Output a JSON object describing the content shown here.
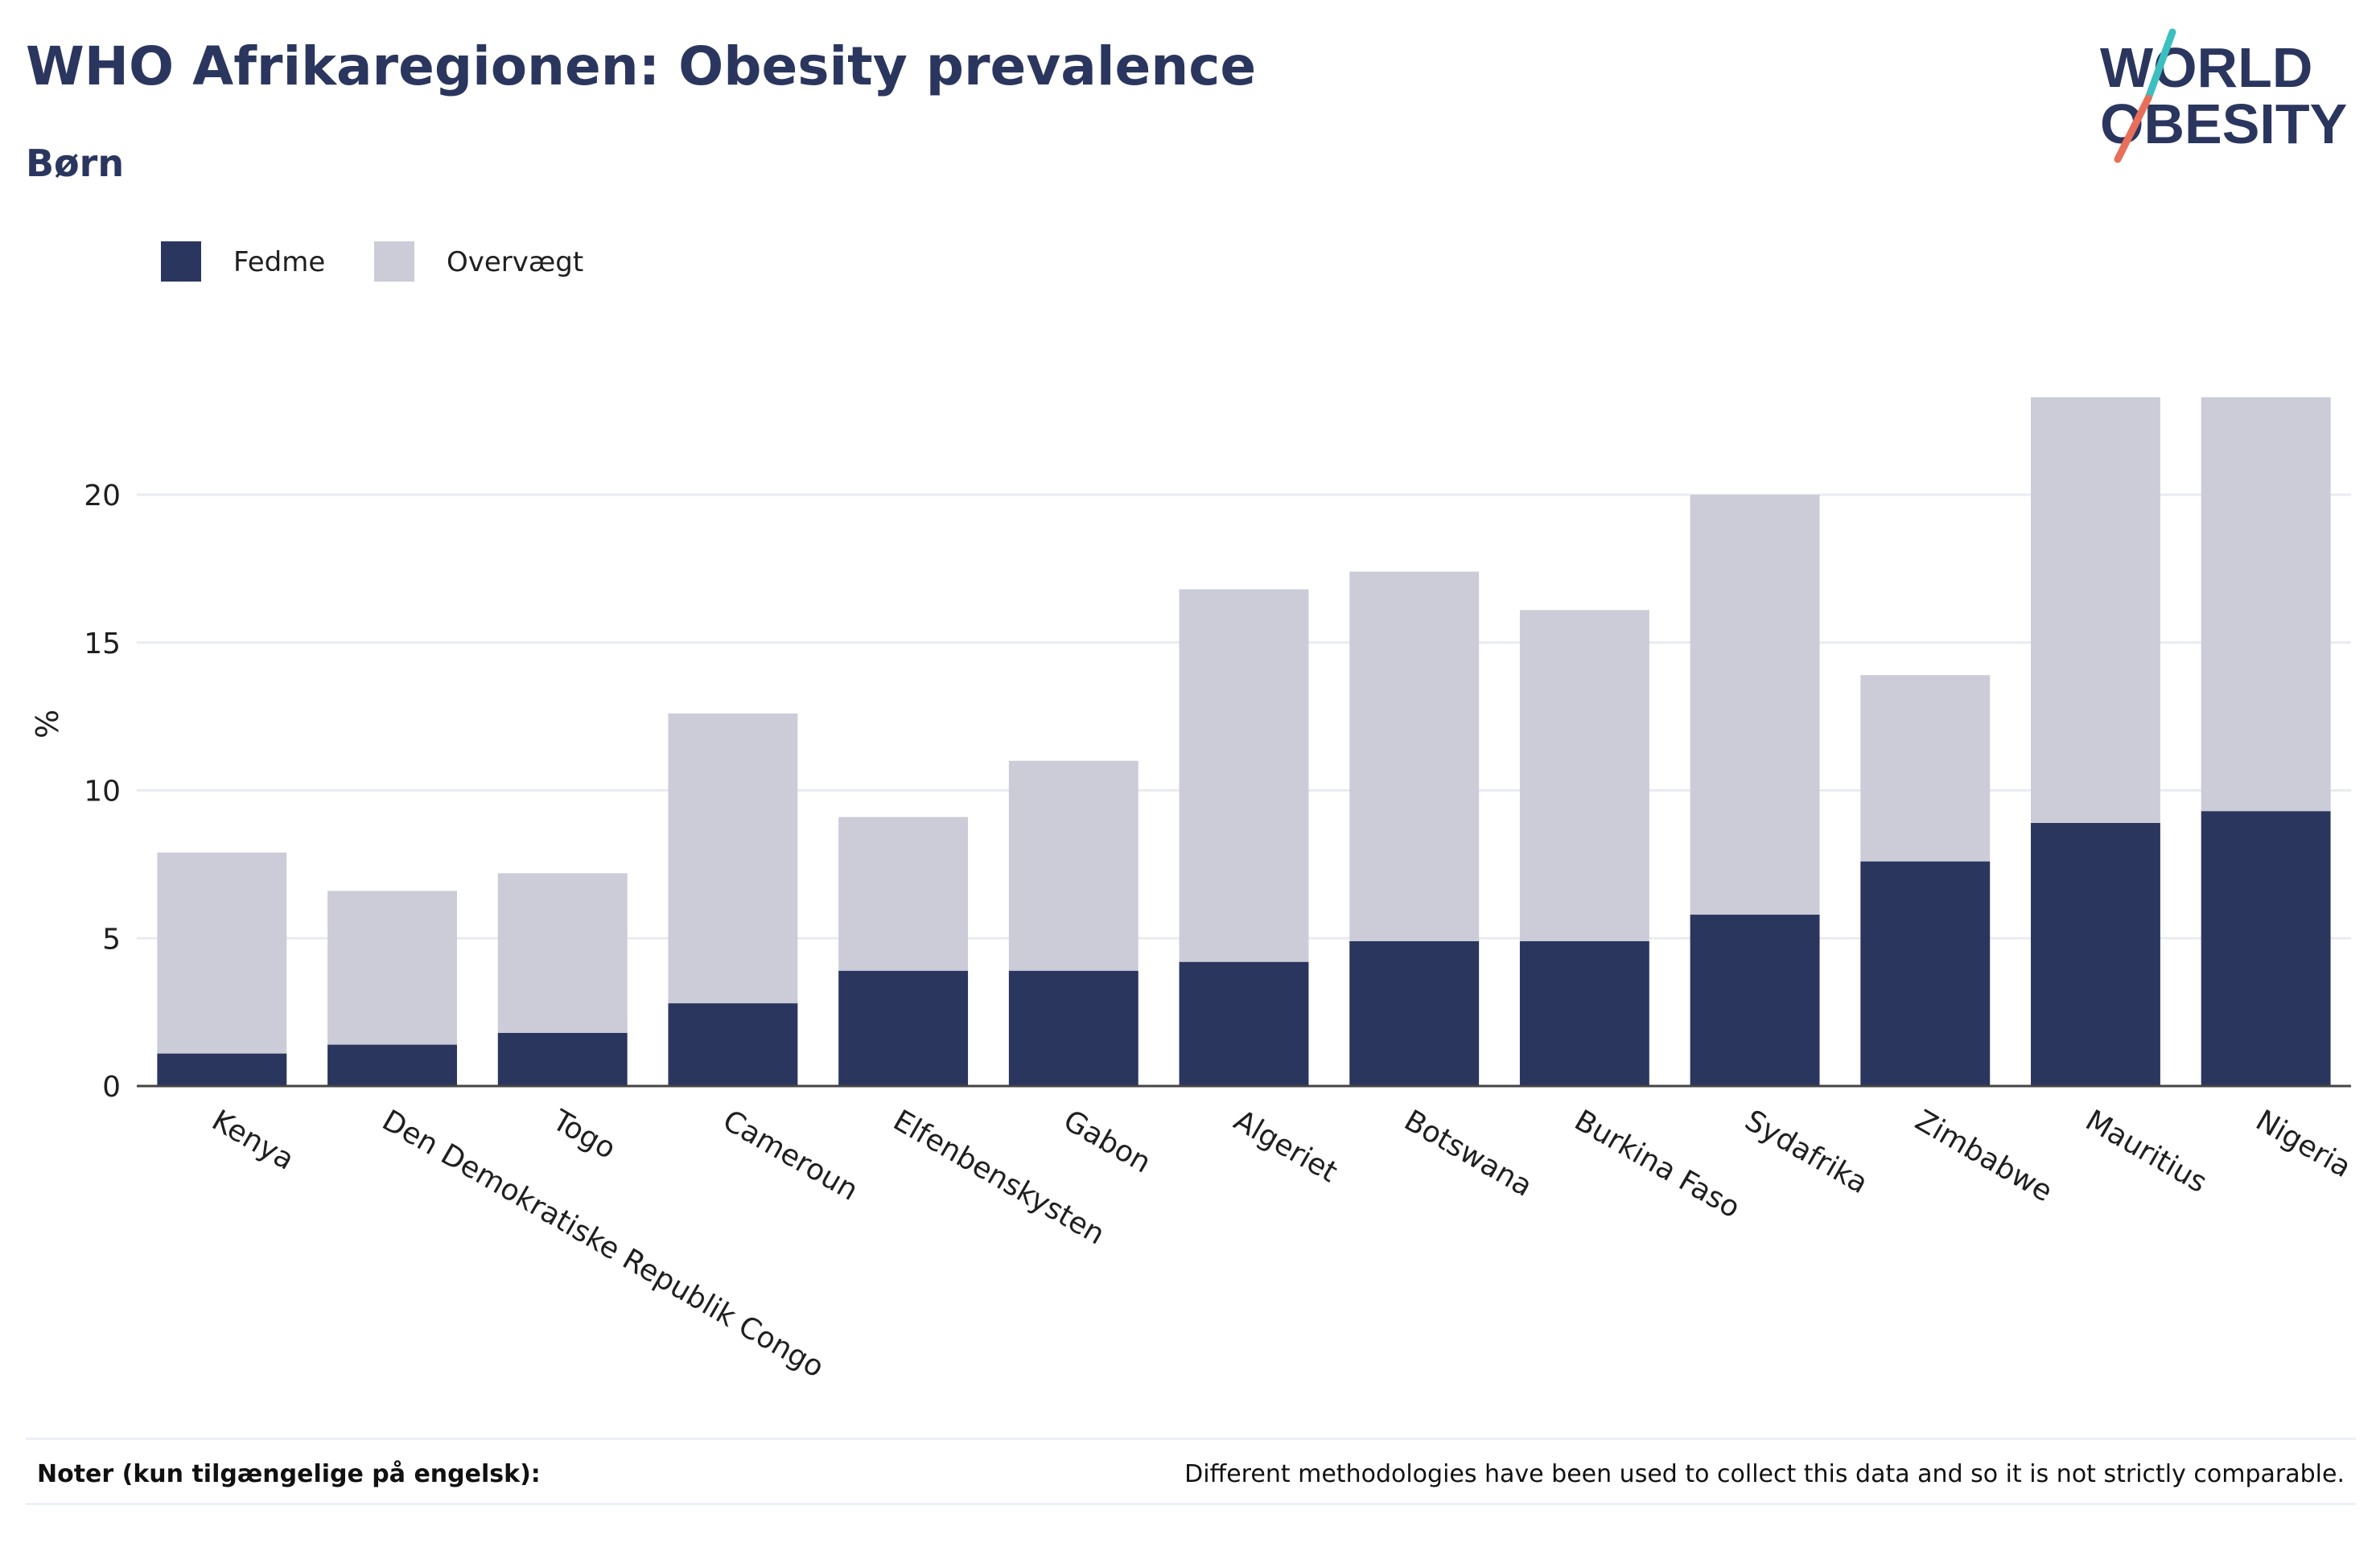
{
  "header": {
    "title": "WHO Afrikaregionen: Obesity prevalence",
    "subtitle": "Børn"
  },
  "logo": {
    "line1": "WORLD",
    "line2": "OBESITY",
    "text_color": "#2b365f",
    "slash_top_color": "#3cbfbf",
    "slash_bottom_color": "#e8705a"
  },
  "legend": {
    "items": [
      {
        "label": "Fedme",
        "color": "#2b365f"
      },
      {
        "label": "Overvægt",
        "color": "#cbccd8"
      }
    ]
  },
  "chart_data": {
    "type": "bar",
    "stacked": true,
    "ylabel": "%",
    "xlabel": "",
    "ylim": [
      0,
      24
    ],
    "yticks": [
      0,
      5,
      10,
      15,
      20
    ],
    "grid": true,
    "legend_position": "top-left",
    "categories": [
      "Kenya",
      "Den Demokratiske Republik Congo",
      "Togo",
      "Cameroun",
      "Elfenbenskysten",
      "Gabon",
      "Algeriet",
      "Botswana",
      "Burkina Faso",
      "Sydafrika",
      "Zimbabwe",
      "Mauritius",
      "Nigeria"
    ],
    "series": [
      {
        "name": "Fedme",
        "color": "#2b365f",
        "values": [
          1.1,
          1.4,
          1.8,
          2.8,
          3.9,
          3.9,
          4.2,
          4.9,
          4.9,
          5.8,
          7.6,
          8.9,
          9.3
        ]
      },
      {
        "name": "Overvægt",
        "color": "#cbccd8",
        "values": [
          6.8,
          5.2,
          5.4,
          9.8,
          5.2,
          7.1,
          12.6,
          12.5,
          11.2,
          14.2,
          6.3,
          14.4,
          14.0
        ]
      }
    ]
  },
  "notes": {
    "label": "Noter (kun tilgængelige på engelsk):",
    "text": "Different methodologies have been used to collect this data and so it is not strictly comparable."
  }
}
